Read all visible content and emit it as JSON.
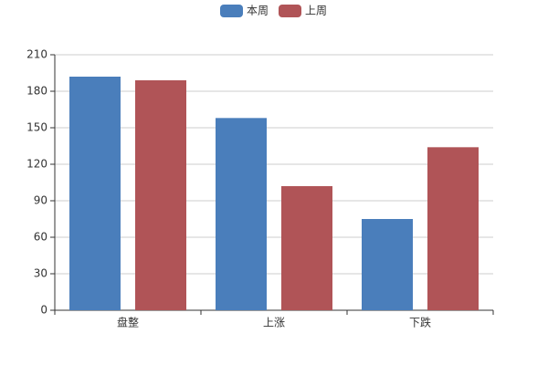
{
  "chart_data": {
    "type": "bar",
    "categories": [
      "盘整",
      "上涨",
      "下跌"
    ],
    "series": [
      {
        "name": "本周",
        "color": "#4a7ebb",
        "values": [
          192,
          158,
          75
        ]
      },
      {
        "name": "上周",
        "color": "#b05457",
        "values": [
          189,
          102,
          134
        ]
      }
    ],
    "ylim": [
      0,
      210
    ],
    "yticks": [
      0,
      30,
      60,
      90,
      120,
      150,
      180,
      210
    ],
    "grid": true,
    "legend": "top"
  }
}
